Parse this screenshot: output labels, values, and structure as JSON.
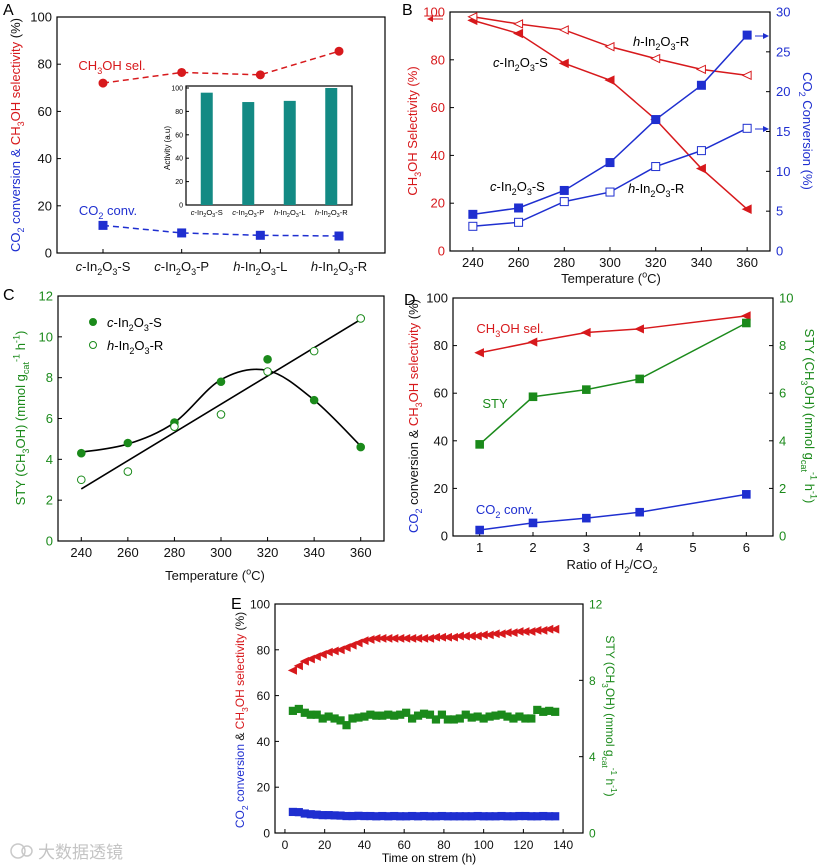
{
  "colors": {
    "red": "#d7191c",
    "blue": "#1f2fd0",
    "green": "#1b8a1b",
    "teal": "#138a84",
    "black": "#111111"
  },
  "watermark": "大数据透镜",
  "chart_data": [
    {
      "panel": "A",
      "type": "line",
      "categories": [
        "c-In2O3-S",
        "c-In2O3-P",
        "h-In2O3-L",
        "h-In2O3-R"
      ],
      "ylabel": "CO2 conversion & CH3OH selectivity (%)",
      "ylim": [
        0,
        100
      ],
      "yticks": [
        0,
        20,
        40,
        60,
        80,
        100
      ],
      "series": [
        {
          "name": "CH3OH sel.",
          "color": "#d7191c",
          "marker": "circle",
          "values": [
            72,
            76.5,
            75.5,
            85.5
          ]
        },
        {
          "name": "CO2 conv.",
          "color": "#1f2fd0",
          "marker": "square",
          "values": [
            11.7,
            8.5,
            7.5,
            7.2
          ]
        }
      ],
      "inset": {
        "type": "bar",
        "categories": [
          "c-In2O3-S",
          "c-In2O3-P",
          "h-In2O3-L",
          "h-In2O3-R"
        ],
        "values": [
          96,
          88,
          89,
          100
        ],
        "ylabel": "Activity (a.u)",
        "ylim": [
          0,
          100
        ],
        "yticks": [
          0,
          20,
          40,
          60,
          80,
          100
        ],
        "color": "#138a84"
      }
    },
    {
      "panel": "B",
      "type": "line",
      "xlabel": "Temperature (°C)",
      "x": [
        240,
        260,
        280,
        300,
        320,
        340,
        360
      ],
      "xlim": [
        230,
        370
      ],
      "xticks": [
        240,
        260,
        280,
        300,
        320,
        340,
        360
      ],
      "ylabel": "CH3OH Selectivity (%)",
      "ylim": [
        0,
        100
      ],
      "yticks": [
        0,
        20,
        40,
        60,
        80,
        100
      ],
      "y2label": "CO2 Conversion (%)",
      "y2lim": [
        0,
        30
      ],
      "y2ticks": [
        0,
        5,
        10,
        15,
        20,
        25,
        30
      ],
      "series": [
        {
          "name": "c-In2O3-S",
          "axis": "left",
          "color": "#d7191c",
          "marker": "triangle-left",
          "filled": true,
          "values": [
            96.5,
            91,
            78.5,
            71.5,
            55,
            34.5,
            17.5
          ]
        },
        {
          "name": "h-In2O3-R",
          "axis": "left",
          "color": "#d7191c",
          "marker": "triangle-left",
          "filled": false,
          "values": [
            98,
            95,
            92.5,
            85.5,
            80.5,
            76,
            73.5
          ]
        },
        {
          "name": "c-In2O3-S",
          "axis": "right",
          "color": "#1f2fd0",
          "marker": "square",
          "filled": true,
          "values": [
            4.6,
            5.4,
            7.6,
            11.1,
            16.5,
            20.8,
            27.1
          ]
        },
        {
          "name": "h-In2O3-R",
          "axis": "right",
          "color": "#1f2fd0",
          "marker": "square",
          "filled": false,
          "values": [
            3.1,
            3.6,
            6.2,
            7.4,
            10.6,
            12.6,
            15.4
          ]
        }
      ],
      "labels": [
        "h-In2O3-R",
        "c-In2O3-S",
        "c-In2O3-S",
        "h-In2O3-R"
      ]
    },
    {
      "panel": "C",
      "type": "scatter",
      "xlabel": "Temperature (°C)",
      "x": [
        240,
        260,
        280,
        300,
        320,
        340,
        360
      ],
      "xlim": [
        230,
        370
      ],
      "xticks": [
        240,
        260,
        280,
        300,
        320,
        340,
        360
      ],
      "ylabel": "STY (CH3OH) (mmol gcat-1 h-1)",
      "ylim": [
        0,
        12
      ],
      "yticks": [
        0,
        2,
        4,
        6,
        8,
        10,
        12
      ],
      "series": [
        {
          "name": "c-In2O3-S",
          "color": "#1b8a1b",
          "marker": "circle",
          "filled": true,
          "values": [
            4.3,
            4.8,
            5.8,
            7.8,
            8.9,
            6.9,
            4.6
          ]
        },
        {
          "name": "h-In2O3-R",
          "color": "#1b8a1b",
          "marker": "circle",
          "filled": false,
          "values": [
            3.0,
            3.4,
            5.6,
            6.2,
            8.3,
            9.3,
            10.9
          ]
        }
      ],
      "fits": [
        {
          "kind": "smooth",
          "x": [
            240,
            260,
            280,
            300,
            320,
            340,
            360
          ],
          "y": [
            4.35,
            4.75,
            5.8,
            7.9,
            8.35,
            6.9,
            4.65
          ]
        },
        {
          "kind": "linear",
          "x": [
            240,
            360
          ],
          "y": [
            2.55,
            10.85
          ]
        }
      ]
    },
    {
      "panel": "D",
      "type": "line",
      "xlabel": "Ratio of H2/CO2",
      "x": [
        1,
        2,
        3,
        4,
        6
      ],
      "xlim": [
        0.5,
        6.5
      ],
      "xticks": [
        1,
        2,
        3,
        4,
        5,
        6
      ],
      "ylabel": "CO2 conversion & CH3OH selectivity (%)",
      "ylim": [
        0,
        100
      ],
      "yticks": [
        0,
        20,
        40,
        60,
        80,
        100
      ],
      "y2label": "STY (CH3OH) (mmol gcat-1 h-1)",
      "y2lim": [
        0,
        10
      ],
      "y2ticks": [
        0,
        2,
        4,
        6,
        8,
        10
      ],
      "series": [
        {
          "name": "CH3OH sel.",
          "axis": "left",
          "color": "#d7191c",
          "marker": "triangle-left",
          "values": [
            77,
            81.5,
            85.5,
            87,
            92.5
          ]
        },
        {
          "name": "STY",
          "axis": "right",
          "color": "#1b8a1b",
          "marker": "square",
          "values": [
            3.85,
            5.85,
            6.15,
            6.6,
            8.95
          ]
        },
        {
          "name": "CO2 conv.",
          "axis": "left",
          "color": "#1f2fd0",
          "marker": "square",
          "values": [
            2.5,
            5.5,
            7.5,
            10,
            17.5
          ]
        }
      ]
    },
    {
      "panel": "E",
      "type": "line",
      "xlabel": "Time on strem (h)",
      "xlim": [
        -5,
        150
      ],
      "xticks": [
        0,
        20,
        40,
        60,
        80,
        100,
        120,
        140
      ],
      "ylabel": "CO2 conversion & CH3OH selectivity (%)",
      "ylim": [
        0,
        100
      ],
      "yticks": [
        0,
        20,
        40,
        60,
        80,
        100
      ],
      "y2label": "STY (CH3OH) (mmol gcat-1 h-1)",
      "y2lim": [
        0,
        12
      ],
      "y2ticks": [
        0,
        4,
        8,
        12
      ],
      "x": [
        4,
        7,
        10,
        13,
        16,
        19,
        22,
        25,
        28,
        31,
        34,
        37,
        40,
        43,
        46,
        49,
        52,
        55,
        58,
        61,
        64,
        67,
        70,
        73,
        76,
        79,
        82,
        85,
        88,
        91,
        94,
        97,
        100,
        103,
        106,
        109,
        112,
        115,
        118,
        121,
        124,
        127,
        130,
        133,
        136
      ],
      "series": [
        {
          "name": "CH3OH selectivity",
          "axis": "left",
          "color": "#d7191c",
          "marker": "triangle-left",
          "values": [
            71,
            73,
            75,
            76,
            77,
            78,
            79,
            79.5,
            80,
            81,
            82,
            83,
            84,
            84.5,
            85,
            85,
            85,
            85,
            85,
            85,
            85,
            85,
            85,
            85,
            85.5,
            85.5,
            85.5,
            85.5,
            86,
            86,
            86,
            86,
            86.5,
            86.5,
            87,
            87,
            87.5,
            87.5,
            88,
            88,
            88,
            88.5,
            88.5,
            89,
            89
          ]
        },
        {
          "name": "STY",
          "axis": "right",
          "color": "#1b8a1b",
          "marker": "square",
          "values": [
            6.4,
            6.5,
            6.3,
            6.2,
            6.2,
            6.0,
            6.1,
            6.0,
            5.9,
            5.65,
            6.0,
            6.05,
            6.1,
            6.2,
            6.15,
            6.15,
            6.2,
            6.15,
            6.2,
            6.3,
            6.0,
            6.15,
            6.25,
            6.2,
            5.95,
            6.2,
            5.95,
            5.95,
            6.0,
            6.2,
            6.05,
            6.1,
            6.0,
            6.1,
            6.15,
            6.2,
            6.1,
            6.0,
            6.1,
            6.0,
            6.0,
            6.45,
            6.35,
            6.4,
            6.35
          ]
        },
        {
          "name": "CO2 conversion",
          "axis": "left",
          "color": "#1f2fd0",
          "marker": "square",
          "values": [
            9.2,
            9.1,
            8.5,
            8.2,
            8.0,
            7.8,
            7.8,
            7.7,
            7.6,
            7.4,
            7.4,
            7.5,
            7.4,
            7.4,
            7.3,
            7.4,
            7.3,
            7.4,
            7.3,
            7.3,
            7.4,
            7.3,
            7.4,
            7.3,
            7.3,
            7.4,
            7.3,
            7.3,
            7.3,
            7.3,
            7.3,
            7.4,
            7.3,
            7.3,
            7.3,
            7.4,
            7.3,
            7.3,
            7.4,
            7.4,
            7.3,
            7.3,
            7.4,
            7.3,
            7.3
          ]
        }
      ]
    }
  ]
}
